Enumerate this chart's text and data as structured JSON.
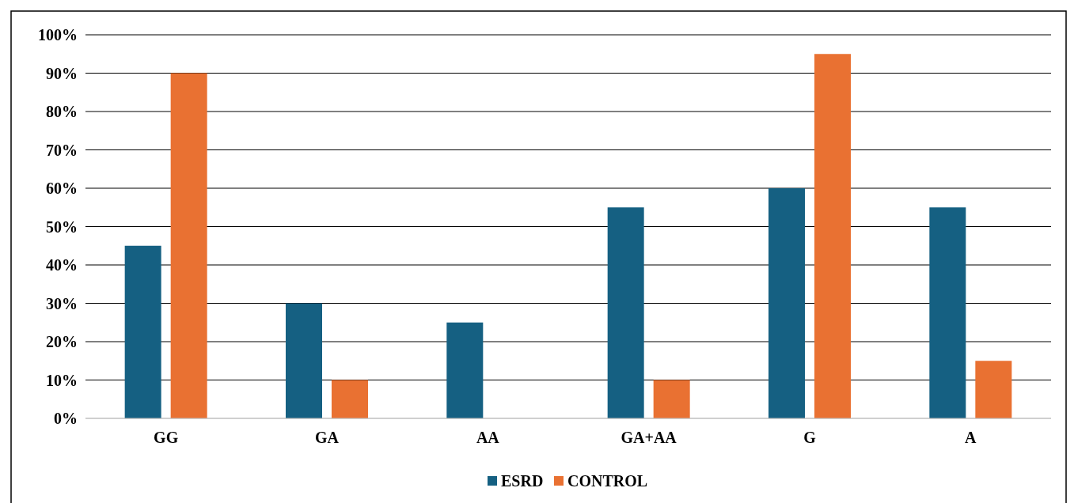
{
  "chart_data": {
    "type": "bar",
    "categories": [
      "GG",
      "GA",
      "AA",
      "GA+AA",
      "G",
      "A"
    ],
    "series": [
      {
        "name": "ESRD",
        "color": "#156082",
        "values": [
          45,
          30,
          25,
          55,
          60,
          55
        ]
      },
      {
        "name": "CONTROL",
        "color": "#e97132",
        "values": [
          90,
          10,
          0,
          10,
          95,
          15
        ]
      }
    ],
    "ylim": [
      0,
      100
    ],
    "yticks": [
      {
        "value": 0,
        "label": "0%"
      },
      {
        "value": 10,
        "label": "10%"
      },
      {
        "value": 20,
        "label": "20%"
      },
      {
        "value": 30,
        "label": "30%"
      },
      {
        "value": 40,
        "label": "40%"
      },
      {
        "value": 50,
        "label": "50%"
      },
      {
        "value": 60,
        "label": "60%"
      },
      {
        "value": 70,
        "label": "70%"
      },
      {
        "value": 80,
        "label": "80%"
      },
      {
        "value": 90,
        "label": "90%"
      },
      {
        "value": 100,
        "label": "100%"
      }
    ],
    "grid": "y",
    "legend": "bottom"
  }
}
